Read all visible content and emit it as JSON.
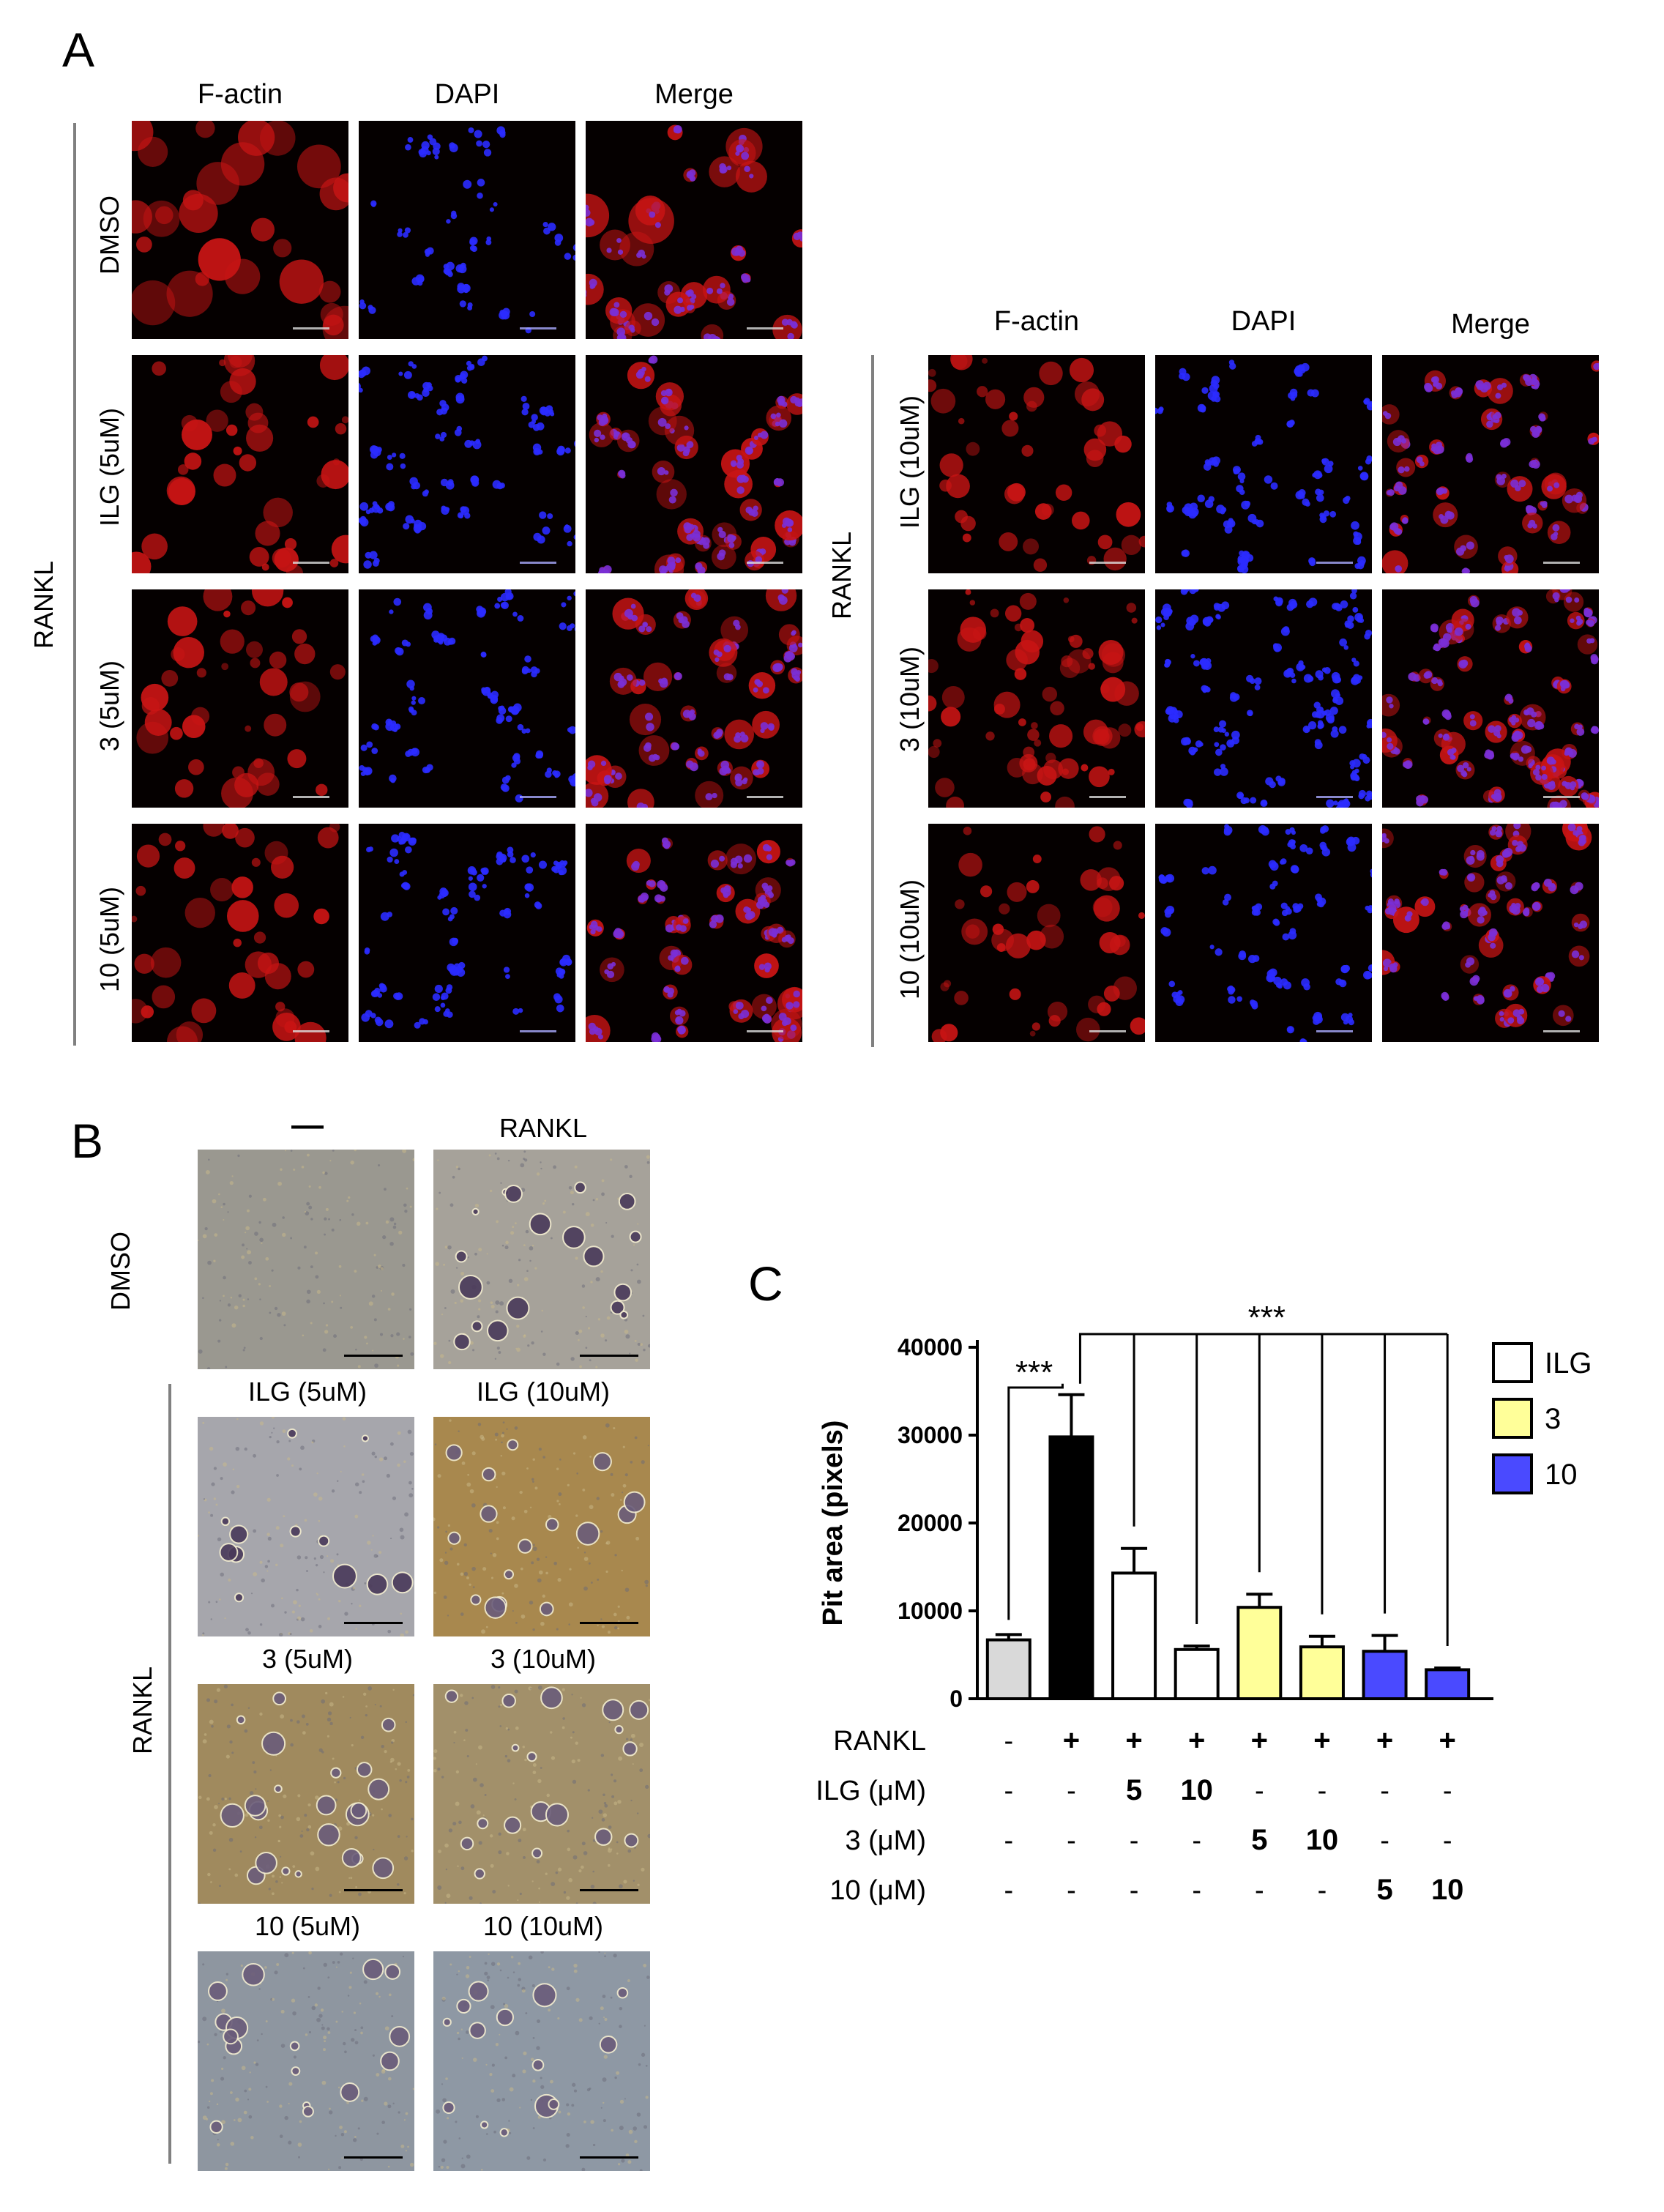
{
  "panel_a": {
    "letter": "A",
    "columns": [
      "F-actin",
      "DAPI",
      "Merge"
    ],
    "group_label": "RANKL",
    "left_rows": [
      "DMSO",
      "ILG (5uM)",
      "3 (5uM)",
      "10 (5uM)"
    ],
    "right_rows": [
      "ILG (10uM)",
      "3 (10uM)",
      "10 (10uM)"
    ]
  },
  "panel_b": {
    "letter": "B",
    "header_cols": [
      "—",
      "RANKL"
    ],
    "dmso_label": "DMSO",
    "group_label": "RANKL",
    "tile_titles": [
      [
        "ILG (5uM)",
        "ILG (10uM)"
      ],
      [
        "3 (5uM)",
        "3 (10uM)"
      ],
      [
        "10 (5uM)",
        "10 (10uM)"
      ]
    ]
  },
  "panel_c": {
    "letter": "C",
    "significance": [
      "***",
      "***"
    ],
    "table": {
      "rows": [
        {
          "label": "RANKL",
          "cells": [
            "-",
            "+",
            "+",
            "+",
            "+",
            "+",
            "+",
            "+"
          ]
        },
        {
          "label": "ILG (μM)",
          "cells": [
            "-",
            "-",
            "5",
            "10",
            "-",
            "-",
            "-",
            "-"
          ]
        },
        {
          "label": "3 (μM)",
          "cells": [
            "-",
            "-",
            "-",
            "-",
            "5",
            "10",
            "-",
            "-"
          ]
        },
        {
          "label": "10 (μM)",
          "cells": [
            "-",
            "-",
            "-",
            "-",
            "-",
            "-",
            "5",
            "10"
          ]
        }
      ]
    }
  },
  "chart_data": {
    "type": "bar",
    "title": "",
    "ylabel": "Pit area (pixels)",
    "xlabel": "",
    "ylim": [
      0,
      40000
    ],
    "yticks": [
      "0",
      "10000",
      "20000",
      "30000",
      "40000"
    ],
    "values": [
      6700,
      29800,
      14300,
      5600,
      10400,
      5900,
      5400,
      3300
    ],
    "errors": [
      600,
      4800,
      2800,
      400,
      1500,
      1200,
      1800,
      200
    ],
    "bar_colors": [
      "#d9d9d9",
      "#000000",
      "#ffffff",
      "#ffffff",
      "#ffff99",
      "#ffff99",
      "#4a4aff",
      "#4a4aff"
    ],
    "legend": [
      {
        "name": "ILG",
        "color": "#ffffff"
      },
      {
        "name": "3",
        "color": "#ffff99"
      },
      {
        "name": "10",
        "color": "#4a4aff"
      }
    ],
    "legend_position": "top-right"
  }
}
